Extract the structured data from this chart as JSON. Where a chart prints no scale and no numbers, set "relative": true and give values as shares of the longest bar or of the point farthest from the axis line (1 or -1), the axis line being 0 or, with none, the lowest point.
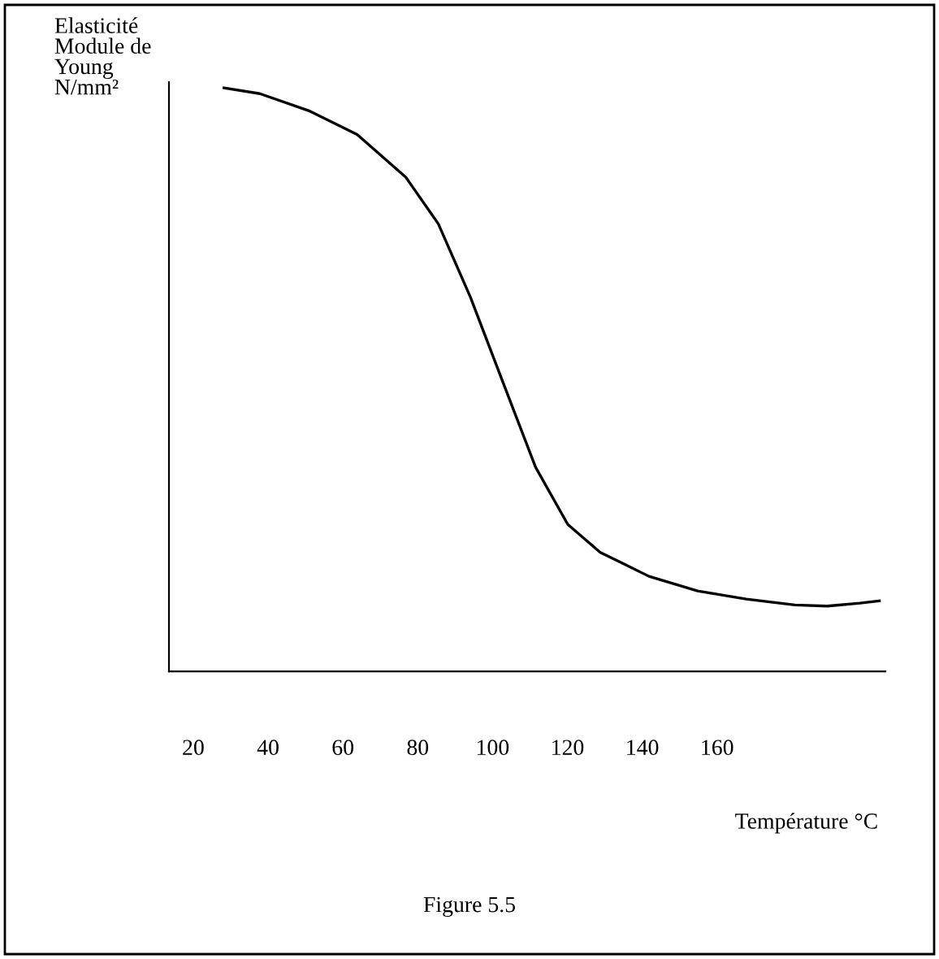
{
  "chart_data": {
    "type": "line",
    "relative": true,
    "xlabel": "Température °C",
    "ylabel": "Elasticité\nModule de\nYoung\nN/mm²",
    "annotations": [
      "Figure 5.5"
    ],
    "xlim": [
      13.5,
      205
    ],
    "xticks": [
      20,
      40,
      60,
      80,
      100,
      120,
      140,
      160
    ],
    "x": [
      28.2,
      37.8,
      50.8,
      63.8,
      76.8,
      85.5,
      94.1,
      102.8,
      111.5,
      120.1,
      128.8,
      141.8,
      154.8,
      167.8,
      180.8,
      189.5,
      198.2,
      203.4
    ],
    "series": [
      {
        "color": "#000000",
        "values": [
          1.0,
          0.99,
          0.961,
          0.92,
          0.847,
          0.767,
          0.641,
          0.495,
          0.35,
          0.252,
          0.204,
          0.163,
          0.138,
          0.124,
          0.114,
          0.112,
          0.117,
          0.121
        ]
      }
    ],
    "tick_labels": "x",
    "grid": false,
    "legend": false,
    "marker": "none",
    "line_style": "solid"
  }
}
